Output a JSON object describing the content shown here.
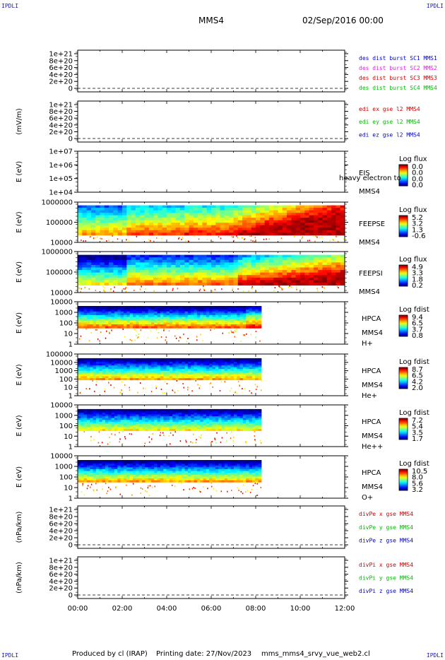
{
  "header": {
    "corner_label": "IPDLI",
    "spacecraft": "MMS4",
    "date": "02/Sep/2016 00:00"
  },
  "footer": {
    "produced_by": "Produced by cl (IRAP)",
    "printing_date": "Printing date: 27/Nov/2023",
    "script": "mms_mms4_srvy_vue_web2.cl"
  },
  "colors": {
    "c1": "#0000cc",
    "c2": "#e020e0",
    "c3": "#cc0000",
    "c4": "#00bb00",
    "red": "#cc0000",
    "green": "#00bb00",
    "blue": "#0000cc"
  },
  "chart_data": {
    "type": "heatmap",
    "x_range": [
      "00:00",
      "12:00"
    ],
    "x_ticks": [
      "00:00",
      "02:00",
      "04:00",
      "06:00",
      "08:00",
      "10:00",
      "12:00"
    ],
    "panels": [
      {
        "kind": "line",
        "ylabel": "",
        "y_ticks": [
          "1e+21",
          "8e+20",
          "6e+20",
          "4e+20",
          "2e+20",
          "0"
        ],
        "zero_dashed": true,
        "legend": [
          {
            "text": "des dist burst SC1 MMS1",
            "color": "#0000cc"
          },
          {
            "text": "des dist burst SC2 MMS2",
            "color": "#e020e0"
          },
          {
            "text": "des dist burst SC3 MMS3",
            "color": "#cc0000"
          },
          {
            "text": "des dist burst SC4 MMS4",
            "color": "#00bb00"
          }
        ]
      },
      {
        "kind": "line",
        "ylabel": "(mV/m)",
        "y_ticks": [
          "1e+21",
          "8e+20",
          "6e+20",
          "4e+20",
          "2e+20",
          "0"
        ],
        "zero_dashed": true,
        "legend": [
          {
            "text": "edi ex gse l2 MMS4",
            "color": "#cc0000"
          },
          {
            "text": "edi ey gse l2 MMS4",
            "color": "#00bb00"
          },
          {
            "text": "edi ez gse l2 MMS4",
            "color": "#0000cc"
          }
        ]
      },
      {
        "kind": "spectrogram",
        "ylabel": "E (eV)",
        "y_ticks": [
          "1e+07",
          "1e+06",
          "1e+05",
          "1e+04"
        ],
        "instrument": [
          "EIS",
          "MMS4"
        ],
        "extra_label": "heavy electron to",
        "colorbar_title": "Log flux",
        "colorbar_ticks": [
          "0.0",
          "0.0",
          "0.0",
          "0.0"
        ],
        "empty": true
      },
      {
        "kind": "spectrogram",
        "ylabel": "E (eV)",
        "y_ticks": [
          "1000000",
          "100000",
          "10000"
        ],
        "instrument": [
          "FEEPSE",
          "MMS4"
        ],
        "colorbar_title": "Log flux",
        "colorbar_ticks": [
          "5.2",
          "3.2",
          "1.3",
          "-0.6"
        ],
        "data_end_hour": 12
      },
      {
        "kind": "spectrogram",
        "ylabel": "E (eV)",
        "y_ticks": [
          "1000000",
          "100000",
          "10000"
        ],
        "instrument": [
          "FEEPSI",
          "MMS4"
        ],
        "colorbar_title": "Log flux",
        "colorbar_ticks": [
          "4.9",
          "3.3",
          "1.8",
          "0.2"
        ],
        "data_end_hour": 12
      },
      {
        "kind": "spectrogram",
        "ylabel": "E (eV)",
        "y_ticks": [
          "10000",
          "1000",
          "100",
          "10",
          "1"
        ],
        "instrument": [
          "HPCA",
          "MMS4",
          "H+"
        ],
        "colorbar_title": "Log fdist",
        "colorbar_ticks": [
          "9.4",
          "6.5",
          "3.7",
          "0.8"
        ],
        "data_end_hour": 8.25
      },
      {
        "kind": "spectrogram",
        "ylabel": "E (eV)",
        "y_ticks": [
          "100000",
          "10000",
          "1000",
          "100",
          "10",
          "1"
        ],
        "instrument": [
          "HPCA",
          "MMS4",
          "He+"
        ],
        "colorbar_title": "Log fdist",
        "colorbar_ticks": [
          "8.7",
          "6.5",
          "4.2",
          "2.0"
        ],
        "data_end_hour": 8.25
      },
      {
        "kind": "spectrogram",
        "ylabel": "E (eV)",
        "y_ticks": [
          "10000",
          "1000",
          "100",
          "10",
          "1"
        ],
        "instrument": [
          "HPCA",
          "MMS4",
          "He++"
        ],
        "colorbar_title": "Log fdist",
        "colorbar_ticks": [
          "7.2",
          "5.4",
          "3.5",
          "1.7"
        ],
        "data_end_hour": 8.25
      },
      {
        "kind": "spectrogram",
        "ylabel": "E (eV)",
        "y_ticks": [
          "10000",
          "1000",
          "100",
          "10",
          "1"
        ],
        "instrument": [
          "HPCA",
          "MMS4",
          "O+"
        ],
        "colorbar_title": "Log fdist",
        "colorbar_ticks": [
          "10.5",
          "8.0",
          "5.6",
          "3.2"
        ],
        "data_end_hour": 8.25
      },
      {
        "kind": "line",
        "ylabel": "(nPa/km)",
        "y_ticks": [
          "1e+21",
          "8e+20",
          "6e+20",
          "4e+20",
          "2e+20",
          "0"
        ],
        "zero_dashed": true,
        "legend": [
          {
            "text": "divPe x gse MMS4",
            "color": "#cc0000"
          },
          {
            "text": "divPe y gse MMS4",
            "color": "#00bb00"
          },
          {
            "text": "divPe z gse MMS4",
            "color": "#0000cc"
          }
        ]
      },
      {
        "kind": "line",
        "ylabel": "(nPa/km)",
        "y_ticks": [
          "1e+21",
          "8e+20",
          "6e+20",
          "4e+20",
          "2e+20",
          "0"
        ],
        "zero_dashed": true,
        "legend": [
          {
            "text": "divPi x gse MMS4",
            "color": "#cc0000"
          },
          {
            "text": "divPi y gse MMS4",
            "color": "#00bb00"
          },
          {
            "text": "divPi z gse MMS4",
            "color": "#0000cc"
          }
        ]
      }
    ]
  }
}
